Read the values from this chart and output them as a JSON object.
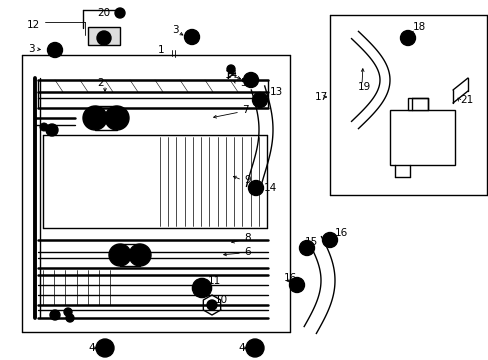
{
  "bg_color": "#ffffff",
  "line_color": "#000000",
  "fig_width": 4.89,
  "fig_height": 3.6,
  "dpi": 100,
  "lw_thick": 1.8,
  "lw_med": 1.0,
  "lw_thin": 0.6,
  "fs_label": 7.5
}
